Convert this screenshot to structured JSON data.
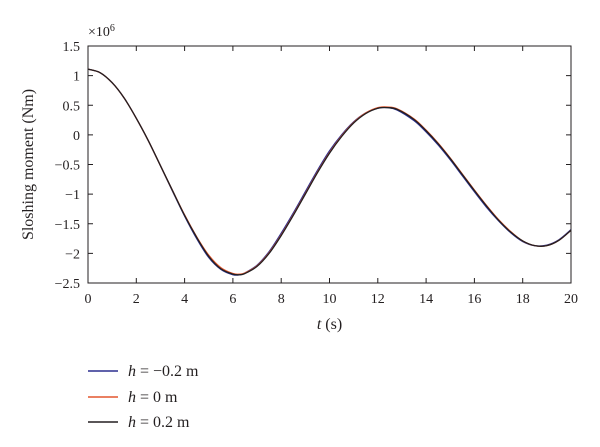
{
  "chart_data": {
    "type": "line",
    "title": "",
    "xlabel_var": "t",
    "xlabel_unit": " (s)",
    "ylabel": "Sloshing moment (Nm)",
    "y_multiplier": {
      "base": "×10",
      "exp": "6"
    },
    "xlim": [
      0,
      20
    ],
    "ylim": [
      -2.5,
      1.5
    ],
    "xticks": [
      0,
      2,
      4,
      6,
      8,
      10,
      12,
      14,
      16,
      18,
      20
    ],
    "yticks": [
      1.5,
      1,
      0.5,
      0,
      -0.5,
      -1,
      -1.5,
      -2,
      -2.5
    ],
    "ytick_labels": [
      "1.5",
      "1",
      "0.5",
      "0",
      "−0.5",
      "−1",
      "−1.5",
      "−2",
      "−2.5"
    ],
    "grid": false,
    "legend_position": "bottom-left, below plot",
    "series": [
      {
        "name_var": "h",
        "name_rest": " = −0.2 m",
        "color": "#2b2f8f",
        "x": [
          0,
          0.5,
          1,
          1.5,
          2,
          2.5,
          3,
          3.5,
          4,
          4.5,
          5,
          5.5,
          6,
          6.3,
          6.5,
          7,
          7.5,
          8,
          8.5,
          9,
          9.5,
          10,
          10.5,
          11,
          11.5,
          12,
          12.4,
          12.8,
          13.5,
          14,
          14.5,
          15,
          15.5,
          16,
          16.5,
          17,
          17.5,
          18,
          18.5,
          19,
          19.5,
          20
        ],
        "y": [
          1.11,
          1.05,
          0.88,
          0.62,
          0.28,
          -0.1,
          -0.52,
          -0.95,
          -1.37,
          -1.75,
          -2.07,
          -2.27,
          -2.36,
          -2.36,
          -2.33,
          -2.2,
          -1.97,
          -1.66,
          -1.32,
          -0.96,
          -0.6,
          -0.27,
          0.0,
          0.22,
          0.37,
          0.45,
          0.46,
          0.42,
          0.24,
          0.05,
          -0.17,
          -0.42,
          -0.69,
          -0.96,
          -1.22,
          -1.45,
          -1.65,
          -1.8,
          -1.87,
          -1.86,
          -1.77,
          -1.6
        ]
      },
      {
        "name_var": "h",
        "name_rest": " = 0 m",
        "color": "#e4572e",
        "x": [
          0,
          0.5,
          1,
          1.5,
          2,
          2.5,
          3,
          3.5,
          4,
          4.5,
          5,
          5.5,
          6,
          6.3,
          6.5,
          7,
          7.5,
          8,
          8.5,
          9,
          9.5,
          10,
          10.5,
          11,
          11.5,
          12,
          12.4,
          12.8,
          13.5,
          14,
          14.5,
          15,
          15.5,
          16,
          16.5,
          17,
          17.5,
          18,
          18.5,
          19,
          19.5,
          20
        ],
        "y": [
          1.11,
          1.05,
          0.88,
          0.62,
          0.28,
          -0.1,
          -0.52,
          -0.94,
          -1.35,
          -1.72,
          -2.03,
          -2.24,
          -2.34,
          -2.35,
          -2.33,
          -2.21,
          -1.99,
          -1.69,
          -1.35,
          -0.99,
          -0.63,
          -0.3,
          -0.02,
          0.21,
          0.37,
          0.46,
          0.47,
          0.44,
          0.27,
          0.08,
          -0.14,
          -0.39,
          -0.66,
          -0.93,
          -1.19,
          -1.43,
          -1.63,
          -1.79,
          -1.87,
          -1.87,
          -1.78,
          -1.61
        ]
      },
      {
        "name_var": "h",
        "name_rest": " = 0.2 m",
        "color": "#231f20",
        "x": [
          0,
          0.5,
          1,
          1.5,
          2,
          2.5,
          3,
          3.5,
          4,
          4.5,
          5,
          5.5,
          6,
          6.3,
          6.5,
          7,
          7.5,
          8,
          8.5,
          9,
          9.5,
          10,
          10.5,
          11,
          11.5,
          12,
          12.4,
          12.8,
          13.5,
          14,
          14.5,
          15,
          15.5,
          16,
          16.5,
          17,
          17.5,
          18,
          18.5,
          19,
          19.5,
          20
        ],
        "y": [
          1.11,
          1.05,
          0.88,
          0.62,
          0.28,
          -0.1,
          -0.52,
          -0.94,
          -1.36,
          -1.73,
          -2.05,
          -2.26,
          -2.35,
          -2.36,
          -2.34,
          -2.22,
          -2.0,
          -1.7,
          -1.36,
          -1.0,
          -0.64,
          -0.31,
          -0.03,
          0.2,
          0.36,
          0.45,
          0.46,
          0.43,
          0.26,
          0.07,
          -0.15,
          -0.4,
          -0.67,
          -0.94,
          -1.2,
          -1.44,
          -1.64,
          -1.79,
          -1.87,
          -1.87,
          -1.78,
          -1.61
        ]
      }
    ]
  }
}
